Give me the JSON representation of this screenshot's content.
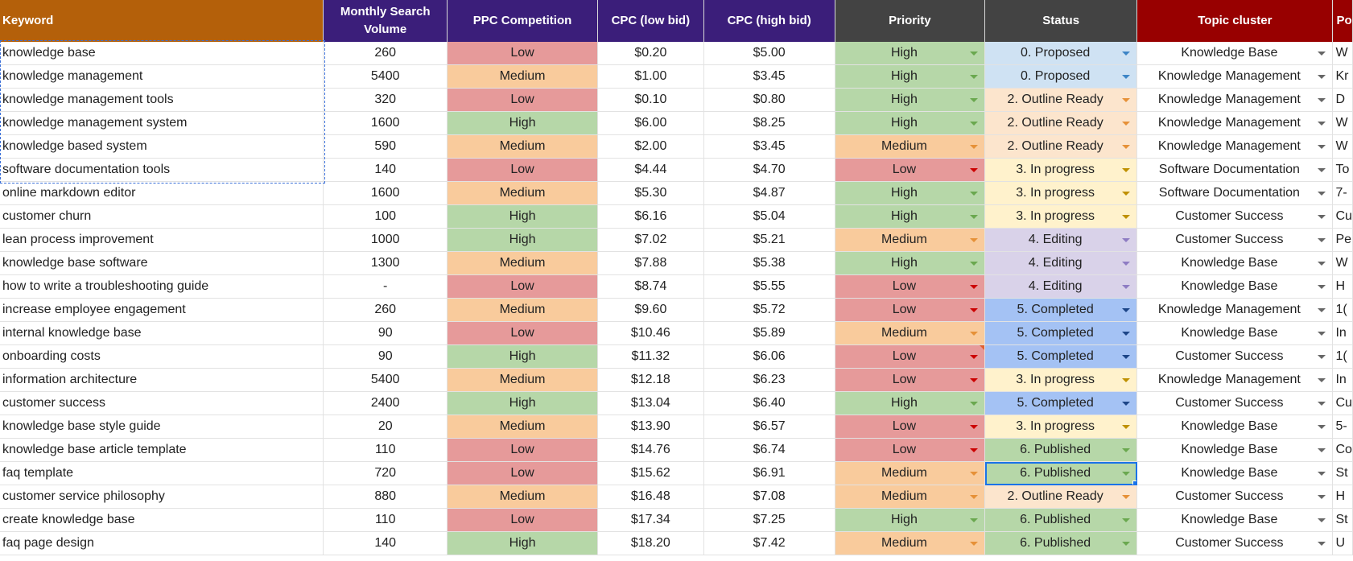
{
  "colors": {
    "header_keyword": "#b4600a",
    "header_purple": "#3b1e7a",
    "header_dark": "#434343",
    "header_red": "#980000",
    "comp_low": "#e69a9a",
    "comp_medium": "#f9cb9c",
    "comp_high": "#b6d7a8",
    "status_proposed": "#cfe2f3",
    "status_outline": "#fce5cd",
    "status_inprogress": "#fff2cc",
    "status_editing": "#d9d2e9",
    "status_completed": "#a4c2f4",
    "status_published": "#b6d7a8"
  },
  "headers": {
    "keyword": "Keyword",
    "volume": "Monthly Search Volume",
    "ppc": "PPC Competition",
    "cpc_low": "CPC (low bid)",
    "cpc_high": "CPC (high bid)",
    "priority": "Priority",
    "status": "Status",
    "topic": "Topic cluster",
    "extra": "Po"
  },
  "rows": [
    {
      "keyword": "knowledge base",
      "volume": "260",
      "ppc": "Low",
      "cpc_low": "$0.20",
      "cpc_high": "$5.00",
      "priority": "High",
      "status": "0. Proposed",
      "topic": "Knowledge Base",
      "extra": "W"
    },
    {
      "keyword": "knowledge management",
      "volume": "5400",
      "ppc": "Medium",
      "cpc_low": "$1.00",
      "cpc_high": "$3.45",
      "priority": "High",
      "status": "0. Proposed",
      "topic": "Knowledge Management",
      "extra": "Kr"
    },
    {
      "keyword": "knowledge management tools",
      "volume": "320",
      "ppc": "Low",
      "cpc_low": "$0.10",
      "cpc_high": "$0.80",
      "priority": "High",
      "status": "2. Outline Ready",
      "topic": "Knowledge Management",
      "extra": "D"
    },
    {
      "keyword": "knowledge management system",
      "volume": "1600",
      "ppc": "High",
      "cpc_low": "$6.00",
      "cpc_high": "$8.25",
      "priority": "High",
      "status": "2. Outline Ready",
      "topic": "Knowledge Management",
      "extra": "W"
    },
    {
      "keyword": "knowledge based system",
      "volume": "590",
      "ppc": "Medium",
      "cpc_low": "$2.00",
      "cpc_high": "$3.45",
      "priority": "Medium",
      "status": "2. Outline Ready",
      "topic": "Knowledge Management",
      "extra": "W"
    },
    {
      "keyword": "software documentation tools",
      "volume": "140",
      "ppc": "Low",
      "cpc_low": "$4.44",
      "cpc_high": "$4.70",
      "priority": "Low",
      "status": "3. In progress",
      "topic": "Software Documentation",
      "extra": "To"
    },
    {
      "keyword": "online markdown editor",
      "volume": "1600",
      "ppc": "Medium",
      "cpc_low": "$5.30",
      "cpc_high": "$4.87",
      "priority": "High",
      "status": "3. In progress",
      "topic": "Software Documentation",
      "extra": "7-"
    },
    {
      "keyword": "customer churn",
      "volume": "100",
      "ppc": "High",
      "cpc_low": "$6.16",
      "cpc_high": "$5.04",
      "priority": "High",
      "status": "3. In progress",
      "topic": "Customer Success",
      "extra": "Cu"
    },
    {
      "keyword": "lean process improvement",
      "volume": "1000",
      "ppc": "High",
      "cpc_low": "$7.02",
      "cpc_high": "$5.21",
      "priority": "Medium",
      "status": "4. Editing",
      "topic": "Customer Success",
      "extra": "Pe"
    },
    {
      "keyword": "knowledge base software",
      "volume": "1300",
      "ppc": "Medium",
      "cpc_low": "$7.88",
      "cpc_high": "$5.38",
      "priority": "High",
      "status": "4. Editing",
      "topic": "Knowledge Base",
      "extra": "W"
    },
    {
      "keyword": "how to write a troubleshooting guide",
      "volume": "-",
      "ppc": "Low",
      "cpc_low": "$8.74",
      "cpc_high": "$5.55",
      "priority": "Low",
      "status": "4. Editing",
      "topic": "Knowledge Base",
      "extra": "H"
    },
    {
      "keyword": "increase employee engagement",
      "volume": "260",
      "ppc": "Medium",
      "cpc_low": "$9.60",
      "cpc_high": "$5.72",
      "priority": "Low",
      "status": "5. Completed",
      "topic": "Knowledge Management",
      "extra": "1("
    },
    {
      "keyword": "internal knowledge base",
      "volume": "90",
      "ppc": "Low",
      "cpc_low": "$10.46",
      "cpc_high": "$5.89",
      "priority": "Medium",
      "status": "5. Completed",
      "topic": "Knowledge Base",
      "extra": "In"
    },
    {
      "keyword": "onboarding costs",
      "volume": "90",
      "ppc": "High",
      "cpc_low": "$11.32",
      "cpc_high": "$6.06",
      "priority": "Low",
      "status": "5. Completed",
      "topic": "Customer Success",
      "extra": "1("
    },
    {
      "keyword": "information architecture",
      "volume": "5400",
      "ppc": "Medium",
      "cpc_low": "$12.18",
      "cpc_high": "$6.23",
      "priority": "Low",
      "status": "3. In progress",
      "topic": "Knowledge Management",
      "extra": "In"
    },
    {
      "keyword": "customer success",
      "volume": "2400",
      "ppc": "High",
      "cpc_low": "$13.04",
      "cpc_high": "$6.40",
      "priority": "High",
      "status": "5. Completed",
      "topic": "Customer Success",
      "extra": "Cu"
    },
    {
      "keyword": "knowledge base style guide",
      "volume": "20",
      "ppc": "Medium",
      "cpc_low": "$13.90",
      "cpc_high": "$6.57",
      "priority": "Low",
      "status": "3. In progress",
      "topic": "Knowledge Base",
      "extra": "5-"
    },
    {
      "keyword": "knowledge base article template",
      "volume": "110",
      "ppc": "Low",
      "cpc_low": "$14.76",
      "cpc_high": "$6.74",
      "priority": "Low",
      "status": "6. Published",
      "topic": "Knowledge Base",
      "extra": "Co"
    },
    {
      "keyword": "faq template",
      "volume": "720",
      "ppc": "Low",
      "cpc_low": "$15.62",
      "cpc_high": "$6.91",
      "priority": "Medium",
      "status": "6. Published",
      "topic": "Knowledge Base",
      "extra": "St"
    },
    {
      "keyword": "customer service philosophy",
      "volume": "880",
      "ppc": "Medium",
      "cpc_low": "$16.48",
      "cpc_high": "$7.08",
      "priority": "Medium",
      "status": "2. Outline Ready",
      "topic": "Customer Success",
      "extra": "H"
    },
    {
      "keyword": "create knowledge base",
      "volume": "110",
      "ppc": "Low",
      "cpc_low": "$17.34",
      "cpc_high": "$7.25",
      "priority": "High",
      "status": "6. Published",
      "topic": "Knowledge Base",
      "extra": "St"
    },
    {
      "keyword": "faq page design",
      "volume": "140",
      "ppc": "High",
      "cpc_low": "$18.20",
      "cpc_high": "$7.42",
      "priority": "Medium",
      "status": "6. Published",
      "topic": "Customer Success",
      "extra": "U"
    }
  ]
}
